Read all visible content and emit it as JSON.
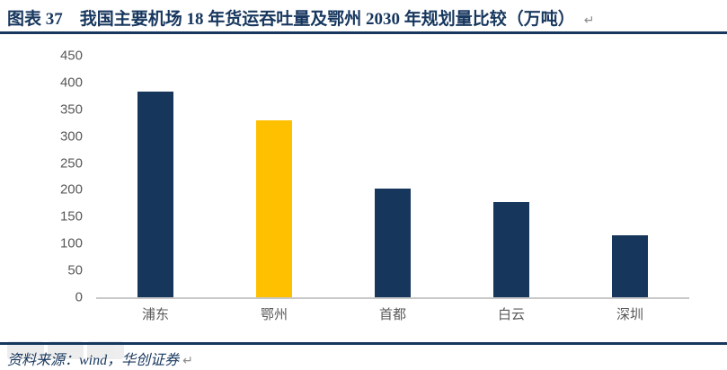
{
  "header": {
    "title": "图表 37　我国主要机场 18 年货运吞吐量及鄂州 2030 年规划量比较（万吨）",
    "paragraph_mark": "↵"
  },
  "footer": {
    "source": "资料来源：wind，华创证券",
    "paragraph_mark": "↵"
  },
  "colors": {
    "navy": "#17375E",
    "bar_default": "#16365C",
    "bar_highlight": "#FFC000",
    "axis_text": "#595959",
    "baseline": "#C8C8C8"
  },
  "chart_data": {
    "type": "bar",
    "title": "我国主要机场18年货运吞吐量及鄂州2030年规划量比较",
    "unit": "万吨",
    "categories": [
      "浦东",
      "鄂州",
      "首都",
      "白云",
      "深圳"
    ],
    "values": [
      383,
      330,
      203,
      178,
      116
    ],
    "highlight_category": "鄂州",
    "highlight_index": 1,
    "ylim": [
      0,
      450
    ],
    "ytick_step": 50,
    "yticks": [
      0,
      50,
      100,
      150,
      200,
      250,
      300,
      350,
      400,
      450
    ],
    "grid": false,
    "legend_position": "none"
  }
}
